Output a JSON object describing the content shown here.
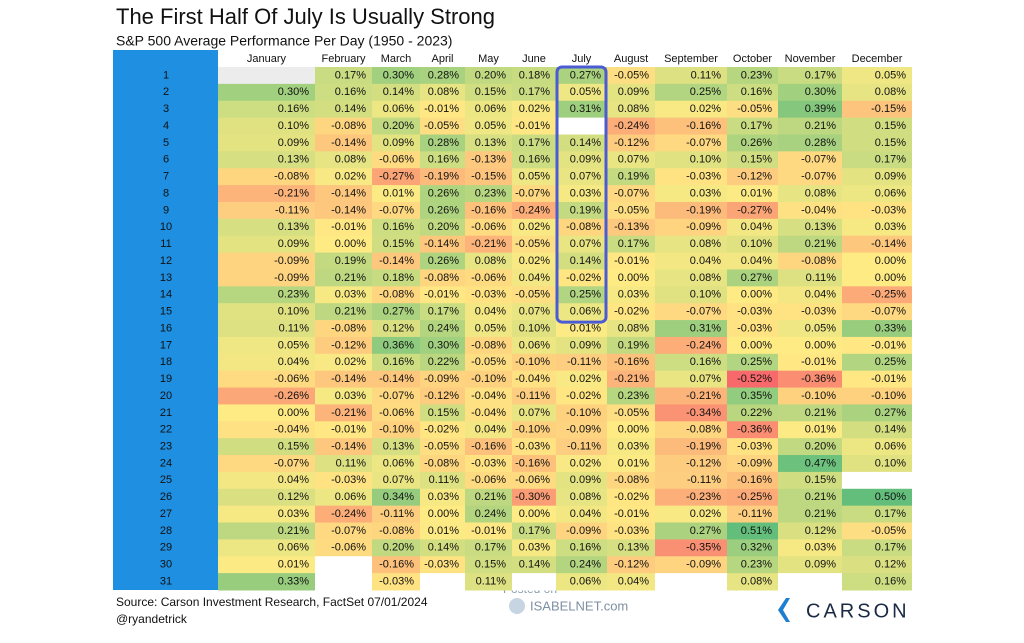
{
  "header": {
    "title": "The First Half Of July Is Usually Strong",
    "subtitle": "S&P 500 Average Performance Per Day (1950 - 2023)"
  },
  "table": {
    "columns": [
      "January",
      "February",
      "March",
      "April",
      "May",
      "June",
      "July",
      "August",
      "September",
      "October",
      "November",
      "December"
    ],
    "rows": [
      {
        "day": 1,
        "cells": [
          null,
          "0.17%",
          "0.30%",
          "0.28%",
          "0.20%",
          "0.18%",
          "0.27%",
          "-0.05%",
          "0.11%",
          "0.23%",
          "0.17%",
          "0.05%"
        ]
      },
      {
        "day": 2,
        "cells": [
          "0.30%",
          "0.16%",
          "0.14%",
          "0.08%",
          "0.15%",
          "0.17%",
          "0.05%",
          "0.09%",
          "0.25%",
          "0.16%",
          "0.30%",
          "0.08%"
        ]
      },
      {
        "day": 3,
        "cells": [
          "0.16%",
          "0.14%",
          "0.06%",
          "-0.01%",
          "0.06%",
          "0.02%",
          "0.31%",
          "0.08%",
          "0.02%",
          "-0.05%",
          "0.39%",
          "-0.15%"
        ]
      },
      {
        "day": 4,
        "cells": [
          "0.10%",
          "-0.08%",
          "0.20%",
          "-0.05%",
          "0.05%",
          "-0.01%",
          null,
          "-0.24%",
          "-0.16%",
          "0.17%",
          "0.21%",
          "0.15%"
        ]
      },
      {
        "day": 5,
        "cells": [
          "0.09%",
          "-0.14%",
          "0.09%",
          "0.28%",
          "0.13%",
          "0.17%",
          "0.14%",
          "-0.12%",
          "-0.07%",
          "0.26%",
          "0.28%",
          "0.15%"
        ]
      },
      {
        "day": 6,
        "cells": [
          "0.13%",
          "0.08%",
          "-0.06%",
          "0.16%",
          "-0.13%",
          "0.16%",
          "0.09%",
          "0.07%",
          "0.10%",
          "0.15%",
          "-0.07%",
          "0.17%"
        ]
      },
      {
        "day": 7,
        "cells": [
          "-0.08%",
          "0.02%",
          "-0.27%",
          "-0.19%",
          "-0.15%",
          "0.05%",
          "0.07%",
          "0.19%",
          "-0.03%",
          "-0.12%",
          "-0.07%",
          "0.09%"
        ]
      },
      {
        "day": 8,
        "cells": [
          "-0.21%",
          "-0.14%",
          "0.01%",
          "0.26%",
          "0.23%",
          "-0.07%",
          "0.03%",
          "-0.07%",
          "0.03%",
          "0.01%",
          "0.08%",
          "0.06%"
        ]
      },
      {
        "day": 9,
        "cells": [
          "-0.11%",
          "-0.14%",
          "-0.07%",
          "0.26%",
          "-0.16%",
          "-0.24%",
          "0.19%",
          "-0.05%",
          "-0.19%",
          "-0.27%",
          "-0.04%",
          "-0.03%"
        ]
      },
      {
        "day": 10,
        "cells": [
          "0.13%",
          "-0.01%",
          "0.16%",
          "0.20%",
          "-0.06%",
          "0.02%",
          "-0.08%",
          "-0.13%",
          "-0.09%",
          "0.04%",
          "0.13%",
          "0.03%"
        ]
      },
      {
        "day": 11,
        "cells": [
          "0.09%",
          "0.00%",
          "0.15%",
          "-0.14%",
          "-0.21%",
          "-0.05%",
          "0.07%",
          "0.17%",
          "0.08%",
          "0.10%",
          "0.21%",
          "-0.14%"
        ]
      },
      {
        "day": 12,
        "cells": [
          "-0.09%",
          "0.19%",
          "-0.14%",
          "0.26%",
          "0.08%",
          "0.02%",
          "0.14%",
          "-0.01%",
          "0.04%",
          "0.04%",
          "-0.08%",
          "0.00%"
        ]
      },
      {
        "day": 13,
        "cells": [
          "-0.09%",
          "0.21%",
          "0.18%",
          "-0.08%",
          "-0.06%",
          "0.04%",
          "-0.02%",
          "0.00%",
          "0.08%",
          "0.27%",
          "0.11%",
          "0.00%"
        ]
      },
      {
        "day": 14,
        "cells": [
          "0.23%",
          "0.03%",
          "-0.08%",
          "-0.01%",
          "-0.03%",
          "-0.05%",
          "0.25%",
          "0.03%",
          "0.10%",
          "0.00%",
          "0.04%",
          "-0.25%"
        ]
      },
      {
        "day": 15,
        "cells": [
          "0.10%",
          "0.21%",
          "0.27%",
          "0.17%",
          "0.04%",
          "0.07%",
          "0.06%",
          "-0.02%",
          "-0.07%",
          "-0.03%",
          "-0.03%",
          "-0.07%"
        ]
      },
      {
        "day": 16,
        "cells": [
          "0.11%",
          "-0.08%",
          "0.12%",
          "0.24%",
          "0.05%",
          "0.10%",
          "0.01%",
          "0.08%",
          "0.31%",
          "-0.03%",
          "0.05%",
          "0.33%"
        ]
      },
      {
        "day": 17,
        "cells": [
          "0.05%",
          "-0.12%",
          "0.36%",
          "0.30%",
          "-0.08%",
          "0.06%",
          "0.09%",
          "0.19%",
          "-0.24%",
          "0.00%",
          "0.00%",
          "-0.01%"
        ]
      },
      {
        "day": 18,
        "cells": [
          "0.04%",
          "0.02%",
          "0.16%",
          "0.22%",
          "-0.05%",
          "-0.10%",
          "-0.11%",
          "-0.16%",
          "0.16%",
          "0.25%",
          "-0.01%",
          "0.25%"
        ]
      },
      {
        "day": 19,
        "cells": [
          "-0.06%",
          "-0.14%",
          "-0.14%",
          "-0.09%",
          "-0.10%",
          "-0.04%",
          "0.02%",
          "-0.21%",
          "0.07%",
          "-0.52%",
          "-0.36%",
          "-0.01%"
        ]
      },
      {
        "day": 20,
        "cells": [
          "-0.26%",
          "0.03%",
          "-0.07%",
          "-0.12%",
          "-0.04%",
          "-0.11%",
          "-0.02%",
          "0.23%",
          "-0.21%",
          "0.35%",
          "-0.10%",
          "-0.10%"
        ]
      },
      {
        "day": 21,
        "cells": [
          "0.00%",
          "-0.21%",
          "-0.06%",
          "0.15%",
          "-0.04%",
          "0.07%",
          "-0.10%",
          "-0.05%",
          "-0.34%",
          "0.22%",
          "0.21%",
          "0.27%"
        ]
      },
      {
        "day": 22,
        "cells": [
          "-0.04%",
          "-0.01%",
          "-0.10%",
          "-0.02%",
          "0.04%",
          "-0.10%",
          "-0.09%",
          "0.00%",
          "-0.08%",
          "-0.36%",
          "0.01%",
          "0.14%"
        ]
      },
      {
        "day": 23,
        "cells": [
          "0.15%",
          "-0.14%",
          "0.13%",
          "-0.05%",
          "-0.16%",
          "-0.03%",
          "-0.11%",
          "0.03%",
          "-0.19%",
          "-0.03%",
          "0.20%",
          "0.06%"
        ]
      },
      {
        "day": 24,
        "cells": [
          "-0.07%",
          "0.11%",
          "0.06%",
          "-0.08%",
          "-0.03%",
          "-0.16%",
          "0.02%",
          "0.01%",
          "-0.12%",
          "-0.09%",
          "0.47%",
          "0.10%"
        ]
      },
      {
        "day": 25,
        "cells": [
          "0.04%",
          "-0.03%",
          "0.07%",
          "0.11%",
          "-0.06%",
          "-0.06%",
          "0.09%",
          "-0.08%",
          "-0.11%",
          "-0.16%",
          "0.15%",
          null
        ]
      },
      {
        "day": 26,
        "cells": [
          "0.12%",
          "0.06%",
          "0.34%",
          "0.03%",
          "0.21%",
          "-0.30%",
          "0.08%",
          "-0.02%",
          "-0.23%",
          "-0.25%",
          "0.21%",
          "0.50%"
        ]
      },
      {
        "day": 27,
        "cells": [
          "0.03%",
          "-0.24%",
          "-0.11%",
          "0.00%",
          "0.24%",
          "0.00%",
          "0.04%",
          "-0.01%",
          "0.02%",
          "-0.11%",
          "0.21%",
          "0.17%"
        ]
      },
      {
        "day": 28,
        "cells": [
          "0.21%",
          "-0.07%",
          "-0.08%",
          "0.01%",
          "-0.01%",
          "0.17%",
          "-0.09%",
          "-0.03%",
          "0.27%",
          "0.51%",
          "0.12%",
          "-0.05%"
        ]
      },
      {
        "day": 29,
        "cells": [
          "0.06%",
          "-0.06%",
          "0.20%",
          "0.14%",
          "0.17%",
          "0.03%",
          "0.16%",
          "0.13%",
          "-0.35%",
          "0.32%",
          "0.03%",
          "0.17%"
        ]
      },
      {
        "day": 30,
        "cells": [
          "0.01%",
          null,
          "-0.16%",
          "-0.03%",
          "0.15%",
          "0.14%",
          "0.24%",
          "-0.12%",
          "-0.09%",
          "0.23%",
          "0.09%",
          "0.12%"
        ]
      },
      {
        "day": 31,
        "cells": [
          "0.33%",
          null,
          "-0.03%",
          null,
          "0.11%",
          null,
          "0.06%",
          "0.04%",
          null,
          "0.08%",
          null,
          "0.16%"
        ]
      }
    ]
  },
  "footer": {
    "source": "Source: Carson Investment Research, FactSet 07/01/2024",
    "handle": "@ryandetrick",
    "posted": "Posted on",
    "site": "ISABELNET.com",
    "logo": "CARSON"
  }
}
